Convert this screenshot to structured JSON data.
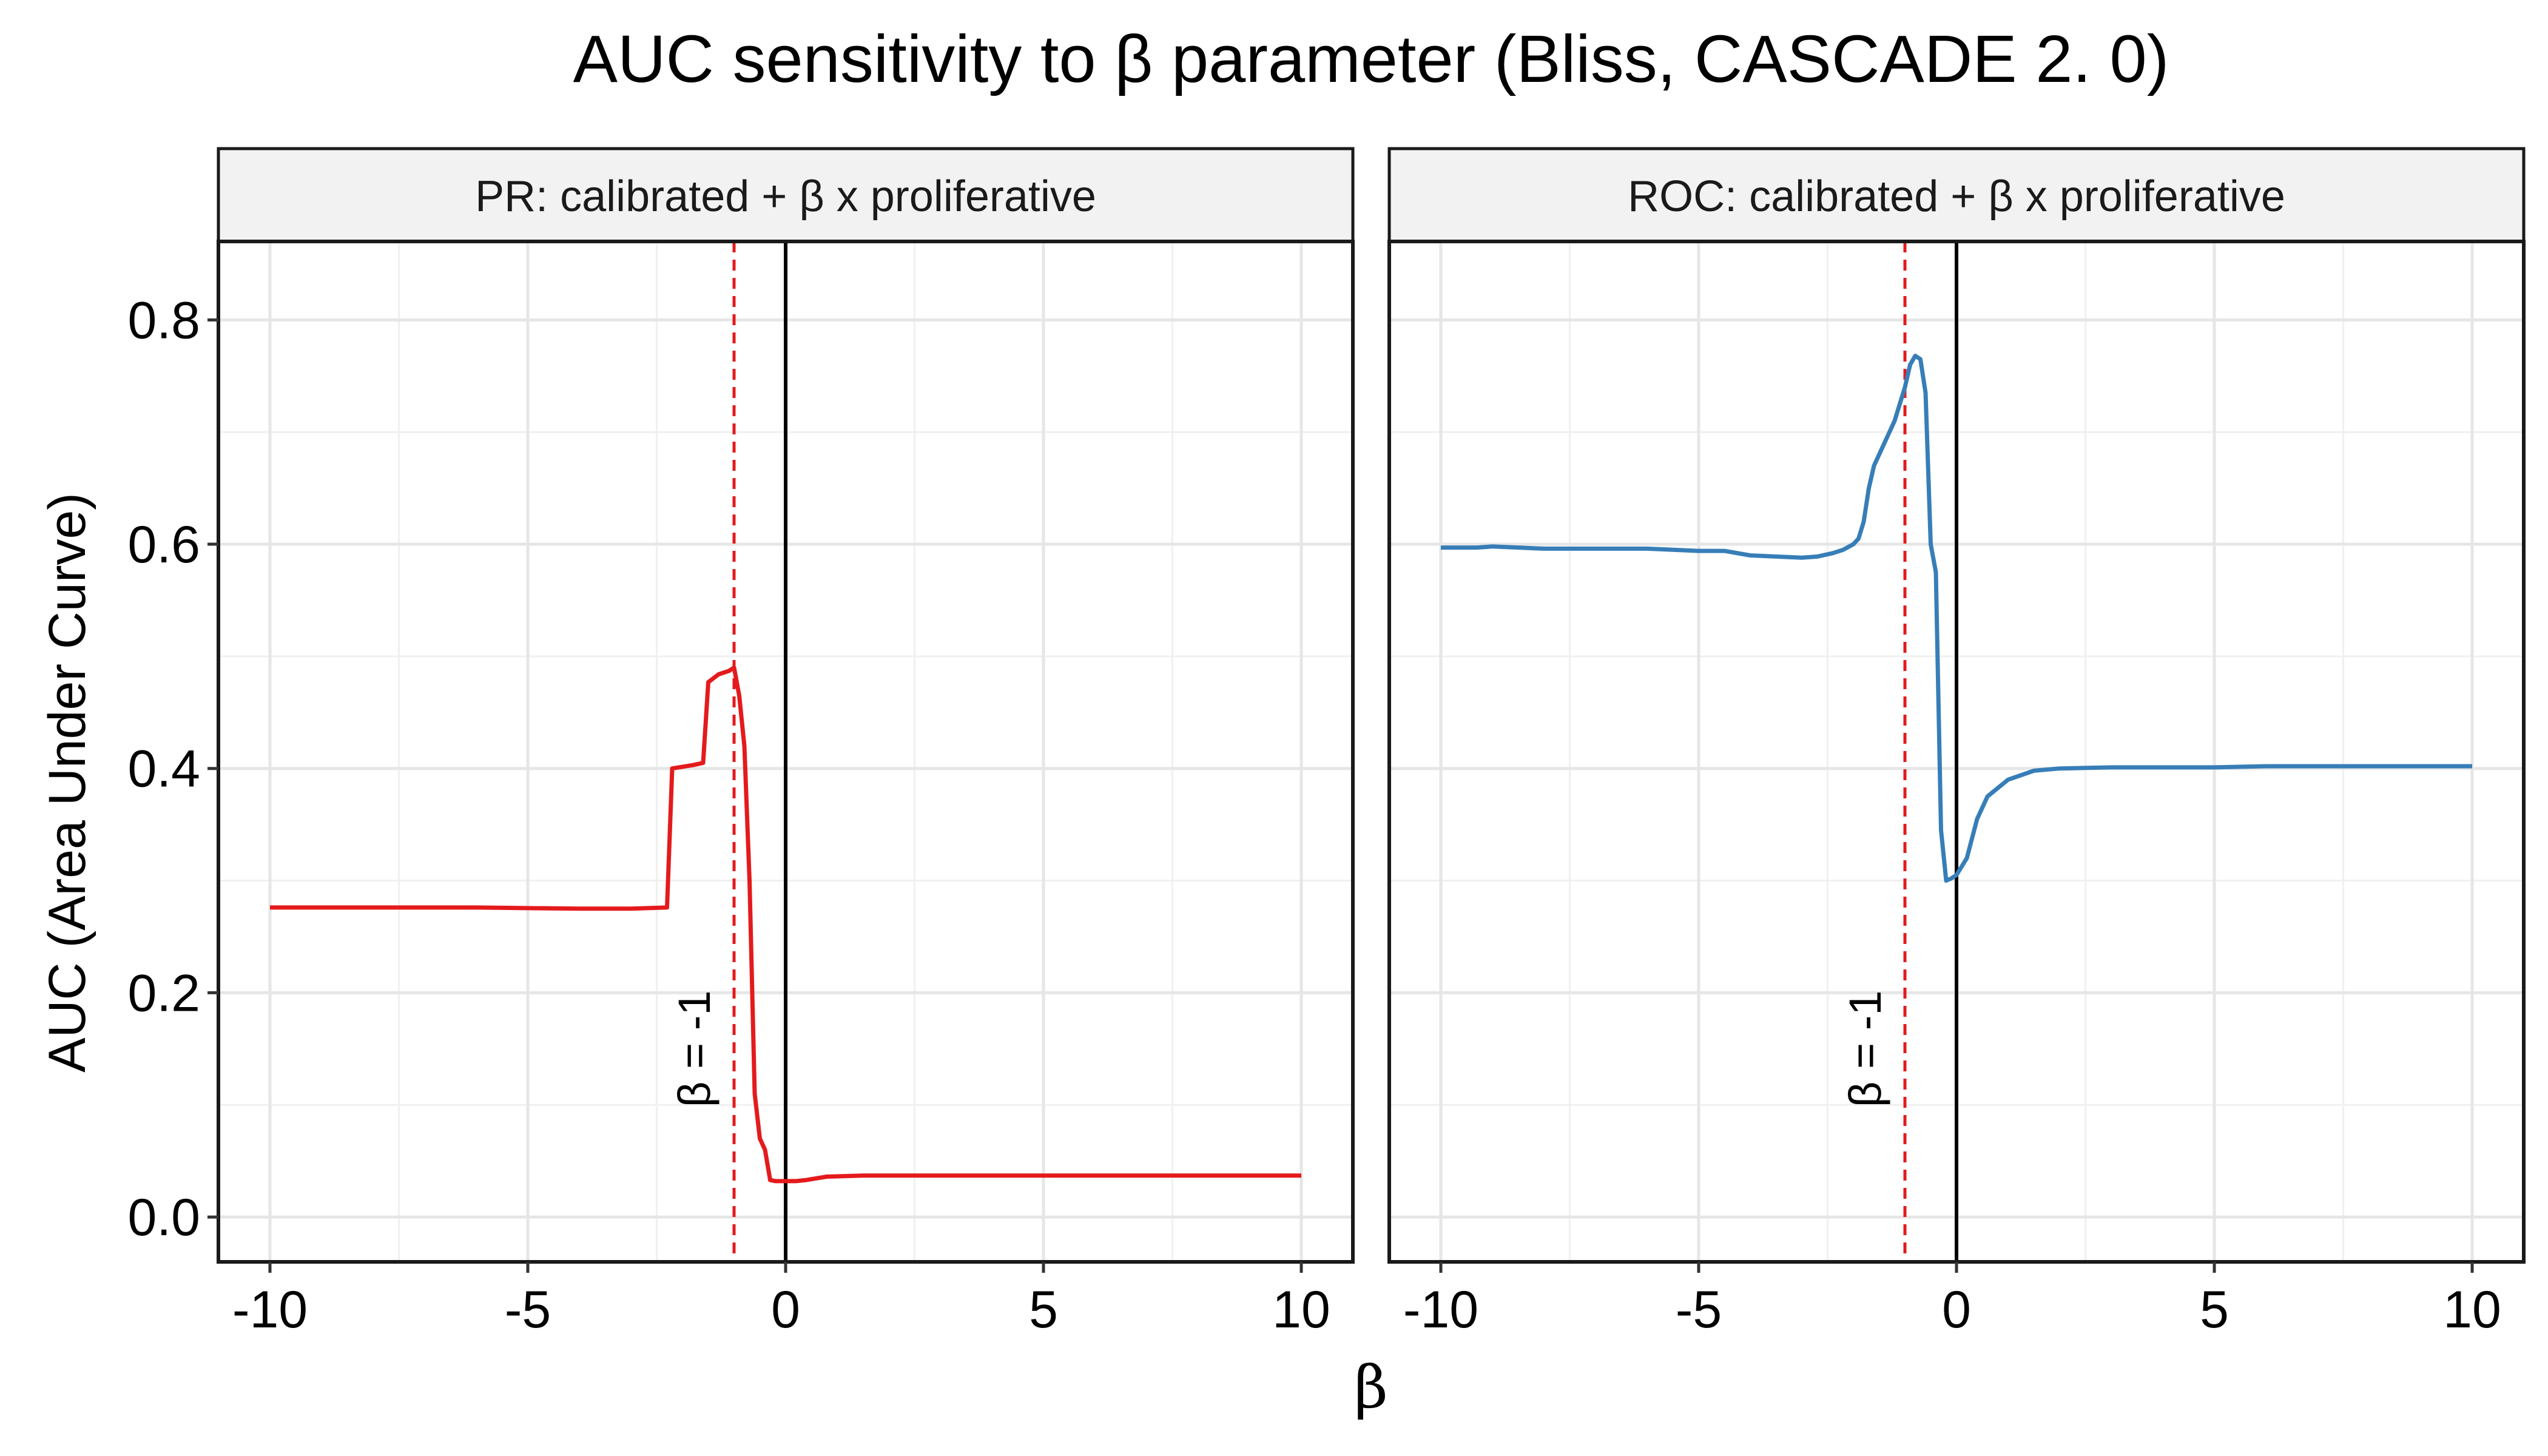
{
  "chart_data": {
    "type": "line",
    "title": "AUC sensitivity to β parameter (Bliss, CASCADE 2. 0)",
    "xlabel": "β",
    "ylabel": "AUC (Area Under Curve)",
    "xlim": [
      -11,
      11
    ],
    "ylim": [
      0,
      0.8
    ],
    "xticks": [
      -10,
      -5,
      0,
      5,
      10
    ],
    "xtick_labels": [
      "-10",
      "-5",
      "0",
      "5",
      "10"
    ],
    "yticks": [
      0,
      0.2,
      0.4,
      0.6,
      0.8
    ],
    "ytick_labels": [
      "0.0",
      "0.2",
      "0.4",
      "0.6",
      "0.8"
    ],
    "grid": true,
    "reference_lines": {
      "solid_x": 0,
      "dashed_x": -1,
      "dashed_color": "#e41a1c"
    },
    "panels": [
      {
        "strip_label": "PR: calibrated + β x proliferative",
        "annotation": "β = -1",
        "color": "#e41a1c",
        "x": [
          -10,
          -8,
          -6,
          -4,
          -3,
          -2.3,
          -2.2,
          -1.8,
          -1.6,
          -1.5,
          -1.3,
          -1.1,
          -1.0,
          -0.9,
          -0.8,
          -0.7,
          -0.6,
          -0.5,
          -0.4,
          -0.3,
          -0.2,
          0,
          0.2,
          0.4,
          0.8,
          1.5,
          2,
          3,
          5,
          7,
          10
        ],
        "y": [
          0.276,
          0.276,
          0.276,
          0.275,
          0.275,
          0.276,
          0.4,
          0.403,
          0.405,
          0.477,
          0.484,
          0.487,
          0.49,
          0.465,
          0.42,
          0.3,
          0.11,
          0.07,
          0.06,
          0.033,
          0.032,
          0.032,
          0.032,
          0.033,
          0.036,
          0.037,
          0.037,
          0.037,
          0.037,
          0.037,
          0.037
        ]
      },
      {
        "strip_label": "ROC: calibrated + β x proliferative",
        "annotation": "β = -1",
        "color": "#377eb8",
        "x": [
          -10,
          -9.3,
          -9,
          -8,
          -6,
          -5,
          -4.5,
          -4,
          -3.5,
          -3,
          -2.7,
          -2.4,
          -2.2,
          -2.0,
          -1.9,
          -1.8,
          -1.7,
          -1.6,
          -1.4,
          -1.2,
          -1.0,
          -0.9,
          -0.8,
          -0.7,
          -0.6,
          -0.5,
          -0.4,
          -0.3,
          -0.2,
          -0.1,
          0,
          0.2,
          0.4,
          0.6,
          1,
          1.5,
          2,
          3,
          4,
          5,
          6,
          7,
          8,
          10
        ],
        "y": [
          0.597,
          0.597,
          0.598,
          0.596,
          0.596,
          0.594,
          0.594,
          0.59,
          0.589,
          0.588,
          0.589,
          0.592,
          0.595,
          0.6,
          0.605,
          0.62,
          0.65,
          0.67,
          0.69,
          0.71,
          0.74,
          0.76,
          0.768,
          0.765,
          0.735,
          0.6,
          0.575,
          0.345,
          0.3,
          0.302,
          0.305,
          0.32,
          0.355,
          0.375,
          0.39,
          0.398,
          0.4,
          0.401,
          0.401,
          0.401,
          0.402,
          0.402,
          0.402,
          0.402
        ]
      }
    ]
  }
}
